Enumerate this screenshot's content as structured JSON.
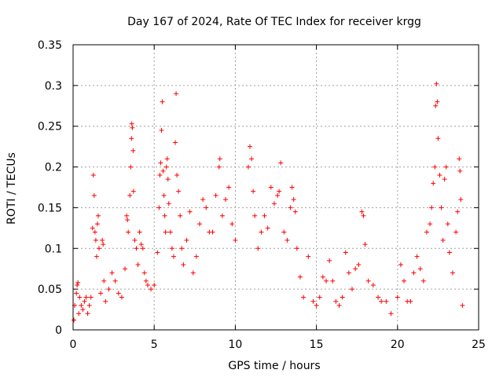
{
  "chart_data": {
    "type": "scatter",
    "title": "Day 167 of 2024, Rate Of TEC Index for receiver krgg",
    "xlabel": "GPS time / hours",
    "ylabel": "ROTI / TECUs",
    "xlim": [
      0,
      25
    ],
    "ylim": [
      0,
      0.35
    ],
    "xticks": [
      "0",
      "5",
      "10",
      "15",
      "20",
      "25"
    ],
    "xtick_values": [
      0,
      5,
      10,
      15,
      20,
      25
    ],
    "yticks": [
      "0",
      "0.05",
      "0.1",
      "0.15",
      "0.2",
      "0.25",
      "0.3",
      "0.35"
    ],
    "ytick_values": [
      0,
      0.05,
      0.1,
      0.15,
      0.2,
      0.25,
      0.3,
      0.35
    ],
    "grid": true,
    "marker": "+",
    "color": "#ff0000",
    "points": [
      [
        0.05,
        0.012
      ],
      [
        0.1,
        0.03
      ],
      [
        0.2,
        0.045
      ],
      [
        0.25,
        0.055
      ],
      [
        0.3,
        0.058
      ],
      [
        0.35,
        0.02
      ],
      [
        0.4,
        0.04
      ],
      [
        0.5,
        0.03
      ],
      [
        0.6,
        0.025
      ],
      [
        0.7,
        0.035
      ],
      [
        0.8,
        0.04
      ],
      [
        0.9,
        0.02
      ],
      [
        1.0,
        0.03
      ],
      [
        1.1,
        0.04
      ],
      [
        1.2,
        0.125
      ],
      [
        1.25,
        0.19
      ],
      [
        1.3,
        0.165
      ],
      [
        1.35,
        0.12
      ],
      [
        1.4,
        0.11
      ],
      [
        1.45,
        0.09
      ],
      [
        1.5,
        0.13
      ],
      [
        1.55,
        0.14
      ],
      [
        1.6,
        0.1
      ],
      [
        1.7,
        0.045
      ],
      [
        1.8,
        0.11
      ],
      [
        1.85,
        0.105
      ],
      [
        1.9,
        0.06
      ],
      [
        2.0,
        0.035
      ],
      [
        2.2,
        0.05
      ],
      [
        2.4,
        0.07
      ],
      [
        2.6,
        0.06
      ],
      [
        2.8,
        0.045
      ],
      [
        3.0,
        0.04
      ],
      [
        3.2,
        0.075
      ],
      [
        3.3,
        0.14
      ],
      [
        3.35,
        0.135
      ],
      [
        3.4,
        0.12
      ],
      [
        3.5,
        0.165
      ],
      [
        3.55,
        0.2
      ],
      [
        3.6,
        0.235
      ],
      [
        3.62,
        0.253
      ],
      [
        3.65,
        0.248
      ],
      [
        3.7,
        0.22
      ],
      [
        3.72,
        0.17
      ],
      [
        3.8,
        0.11
      ],
      [
        3.9,
        0.1
      ],
      [
        4.0,
        0.08
      ],
      [
        4.1,
        0.12
      ],
      [
        4.2,
        0.105
      ],
      [
        4.3,
        0.1
      ],
      [
        4.4,
        0.07
      ],
      [
        4.5,
        0.06
      ],
      [
        4.6,
        0.055
      ],
      [
        4.8,
        0.05
      ],
      [
        5.0,
        0.055
      ],
      [
        5.2,
        0.095
      ],
      [
        5.3,
        0.15
      ],
      [
        5.35,
        0.19
      ],
      [
        5.4,
        0.205
      ],
      [
        5.45,
        0.245
      ],
      [
        5.5,
        0.28
      ],
      [
        5.55,
        0.195
      ],
      [
        5.6,
        0.165
      ],
      [
        5.65,
        0.14
      ],
      [
        5.7,
        0.12
      ],
      [
        5.75,
        0.2
      ],
      [
        5.8,
        0.21
      ],
      [
        5.85,
        0.185
      ],
      [
        5.9,
        0.155
      ],
      [
        6.0,
        0.12
      ],
      [
        6.1,
        0.1
      ],
      [
        6.2,
        0.09
      ],
      [
        6.3,
        0.23
      ],
      [
        6.35,
        0.29
      ],
      [
        6.4,
        0.19
      ],
      [
        6.5,
        0.17
      ],
      [
        6.6,
        0.14
      ],
      [
        6.7,
        0.1
      ],
      [
        6.8,
        0.08
      ],
      [
        7.0,
        0.11
      ],
      [
        7.2,
        0.145
      ],
      [
        7.4,
        0.07
      ],
      [
        7.6,
        0.09
      ],
      [
        7.8,
        0.13
      ],
      [
        8.0,
        0.16
      ],
      [
        8.2,
        0.15
      ],
      [
        8.4,
        0.12
      ],
      [
        8.6,
        0.12
      ],
      [
        8.8,
        0.165
      ],
      [
        9.0,
        0.2
      ],
      [
        9.05,
        0.21
      ],
      [
        9.2,
        0.14
      ],
      [
        9.4,
        0.16
      ],
      [
        9.6,
        0.175
      ],
      [
        9.8,
        0.13
      ],
      [
        10.0,
        0.11
      ],
      [
        10.8,
        0.2
      ],
      [
        10.9,
        0.225
      ],
      [
        11.0,
        0.21
      ],
      [
        11.1,
        0.17
      ],
      [
        11.2,
        0.14
      ],
      [
        11.4,
        0.1
      ],
      [
        11.6,
        0.12
      ],
      [
        11.8,
        0.14
      ],
      [
        12.0,
        0.125
      ],
      [
        12.2,
        0.175
      ],
      [
        12.4,
        0.155
      ],
      [
        12.6,
        0.165
      ],
      [
        12.7,
        0.17
      ],
      [
        12.8,
        0.205
      ],
      [
        13.0,
        0.12
      ],
      [
        13.2,
        0.11
      ],
      [
        13.4,
        0.15
      ],
      [
        13.5,
        0.175
      ],
      [
        13.6,
        0.16
      ],
      [
        13.7,
        0.145
      ],
      [
        13.8,
        0.1
      ],
      [
        14.0,
        0.065
      ],
      [
        14.2,
        0.04
      ],
      [
        14.5,
        0.09
      ],
      [
        14.8,
        0.035
      ],
      [
        15.0,
        0.03
      ],
      [
        15.2,
        0.04
      ],
      [
        15.4,
        0.065
      ],
      [
        15.6,
        0.06
      ],
      [
        15.8,
        0.085
      ],
      [
        16.0,
        0.06
      ],
      [
        16.2,
        0.035
      ],
      [
        16.4,
        0.03
      ],
      [
        16.6,
        0.04
      ],
      [
        16.8,
        0.095
      ],
      [
        17.0,
        0.07
      ],
      [
        17.2,
        0.05
      ],
      [
        17.4,
        0.075
      ],
      [
        17.6,
        0.08
      ],
      [
        17.8,
        0.145
      ],
      [
        17.9,
        0.14
      ],
      [
        18.0,
        0.105
      ],
      [
        18.2,
        0.06
      ],
      [
        18.5,
        0.055
      ],
      [
        18.8,
        0.04
      ],
      [
        19.0,
        0.035
      ],
      [
        19.3,
        0.035
      ],
      [
        19.6,
        0.02
      ],
      [
        20.0,
        0.04
      ],
      [
        20.2,
        0.08
      ],
      [
        20.4,
        0.06
      ],
      [
        20.6,
        0.035
      ],
      [
        20.8,
        0.035
      ],
      [
        21.0,
        0.07
      ],
      [
        21.2,
        0.09
      ],
      [
        21.4,
        0.075
      ],
      [
        21.6,
        0.06
      ],
      [
        21.8,
        0.12
      ],
      [
        22.0,
        0.13
      ],
      [
        22.1,
        0.15
      ],
      [
        22.2,
        0.18
      ],
      [
        22.3,
        0.2
      ],
      [
        22.35,
        0.275
      ],
      [
        22.4,
        0.302
      ],
      [
        22.45,
        0.28
      ],
      [
        22.5,
        0.235
      ],
      [
        22.6,
        0.19
      ],
      [
        22.7,
        0.15
      ],
      [
        22.8,
        0.11
      ],
      [
        22.9,
        0.185
      ],
      [
        23.0,
        0.2
      ],
      [
        23.1,
        0.13
      ],
      [
        23.2,
        0.095
      ],
      [
        23.4,
        0.07
      ],
      [
        23.6,
        0.12
      ],
      [
        23.7,
        0.145
      ],
      [
        23.8,
        0.21
      ],
      [
        23.85,
        0.195
      ],
      [
        23.9,
        0.16
      ],
      [
        24.0,
        0.03
      ]
    ]
  }
}
